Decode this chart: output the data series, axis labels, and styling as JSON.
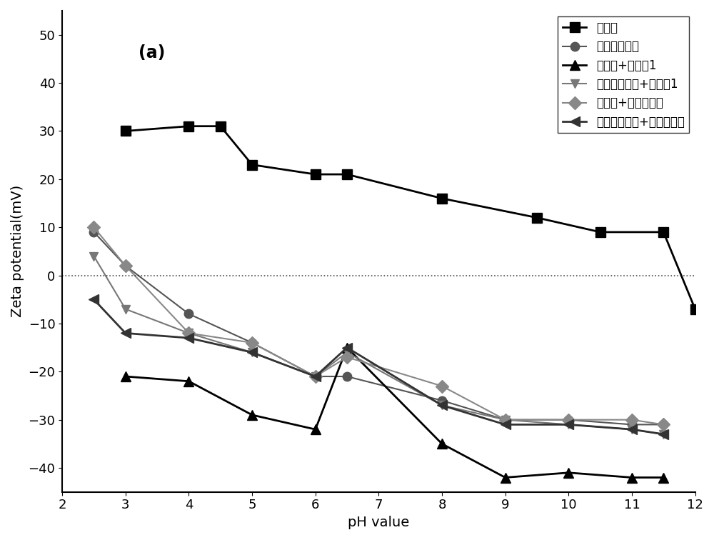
{
  "title_label": "(a)",
  "xlabel": "pH value",
  "ylabel": "Zeta potential(mV)",
  "xlim": [
    2,
    12
  ],
  "ylim": [
    -45,
    55
  ],
  "yticks": [
    -40,
    -30,
    -20,
    -10,
    0,
    10,
    20,
    30,
    40,
    50
  ],
  "xticks": [
    2,
    3,
    4,
    5,
    6,
    7,
    8,
    9,
    10,
    11,
    12
  ],
  "series": [
    {
      "label": "蛇纹石",
      "color": "#000000",
      "marker": "s",
      "markersize": 10,
      "linewidth": 2,
      "linestyle": "-",
      "x": [
        3,
        4,
        4.5,
        5,
        6,
        6.5,
        8,
        9.5,
        10.5,
        11.5,
        12
      ],
      "y": [
        30,
        31,
        31,
        23,
        21,
        21,
        16,
        12,
        9,
        9,
        -7
      ]
    },
    {
      "label": "硫化铜镍矿物",
      "color": "#555555",
      "marker": "o",
      "markersize": 9,
      "linewidth": 1.5,
      "linestyle": "-",
      "x": [
        2.5,
        3,
        4,
        5,
        6,
        6.5,
        8,
        9,
        10,
        11,
        11.5
      ],
      "y": [
        9,
        2,
        -8,
        -14,
        -21,
        -21,
        -26,
        -30,
        -30,
        -31,
        -31
      ]
    },
    {
      "label": "蛇纹石+实施例1",
      "color": "#000000",
      "marker": "^",
      "markersize": 10,
      "linewidth": 2,
      "linestyle": "-",
      "x": [
        3,
        4,
        5,
        6,
        6.5,
        8,
        9,
        10,
        11,
        11.5
      ],
      "y": [
        -21,
        -22,
        -29,
        -32,
        -15,
        -35,
        -42,
        -41,
        -42,
        -42
      ]
    },
    {
      "label": "硫化铜镍矿物+实施例1",
      "color": "#777777",
      "marker": "v",
      "markersize": 9,
      "linewidth": 1.5,
      "linestyle": "-",
      "x": [
        2.5,
        3,
        4,
        5,
        6,
        6.5,
        8,
        9,
        10,
        11,
        11.5
      ],
      "y": [
        4,
        -7,
        -12,
        -16,
        -21,
        -16,
        -27,
        -30,
        -31,
        -32,
        -33
      ]
    },
    {
      "label": "蛇纹石+六偏磷酸钠",
      "color": "#888888",
      "marker": "D",
      "markersize": 9,
      "linewidth": 1.5,
      "linestyle": "-",
      "x": [
        2.5,
        3,
        4,
        5,
        6,
        6.5,
        8,
        9,
        10,
        11,
        11.5
      ],
      "y": [
        10,
        2,
        -12,
        -14,
        -21,
        -17,
        -23,
        -30,
        -30,
        -30,
        -31
      ]
    },
    {
      "label": "硫化铜镍矿物+六偏磷酸钠",
      "color": "#333333",
      "marker": "<",
      "markersize": 10,
      "linewidth": 2,
      "linestyle": "-",
      "x": [
        2.5,
        3,
        4,
        5,
        6,
        6.5,
        8,
        9,
        10,
        11,
        11.5
      ],
      "y": [
        -5,
        -12,
        -13,
        -16,
        -21,
        -15,
        -27,
        -31,
        -31,
        -32,
        -33
      ]
    }
  ],
  "background_color": "#ffffff",
  "font_size_label": 14,
  "font_size_tick": 13,
  "font_size_legend": 12,
  "font_size_annotation": 17
}
